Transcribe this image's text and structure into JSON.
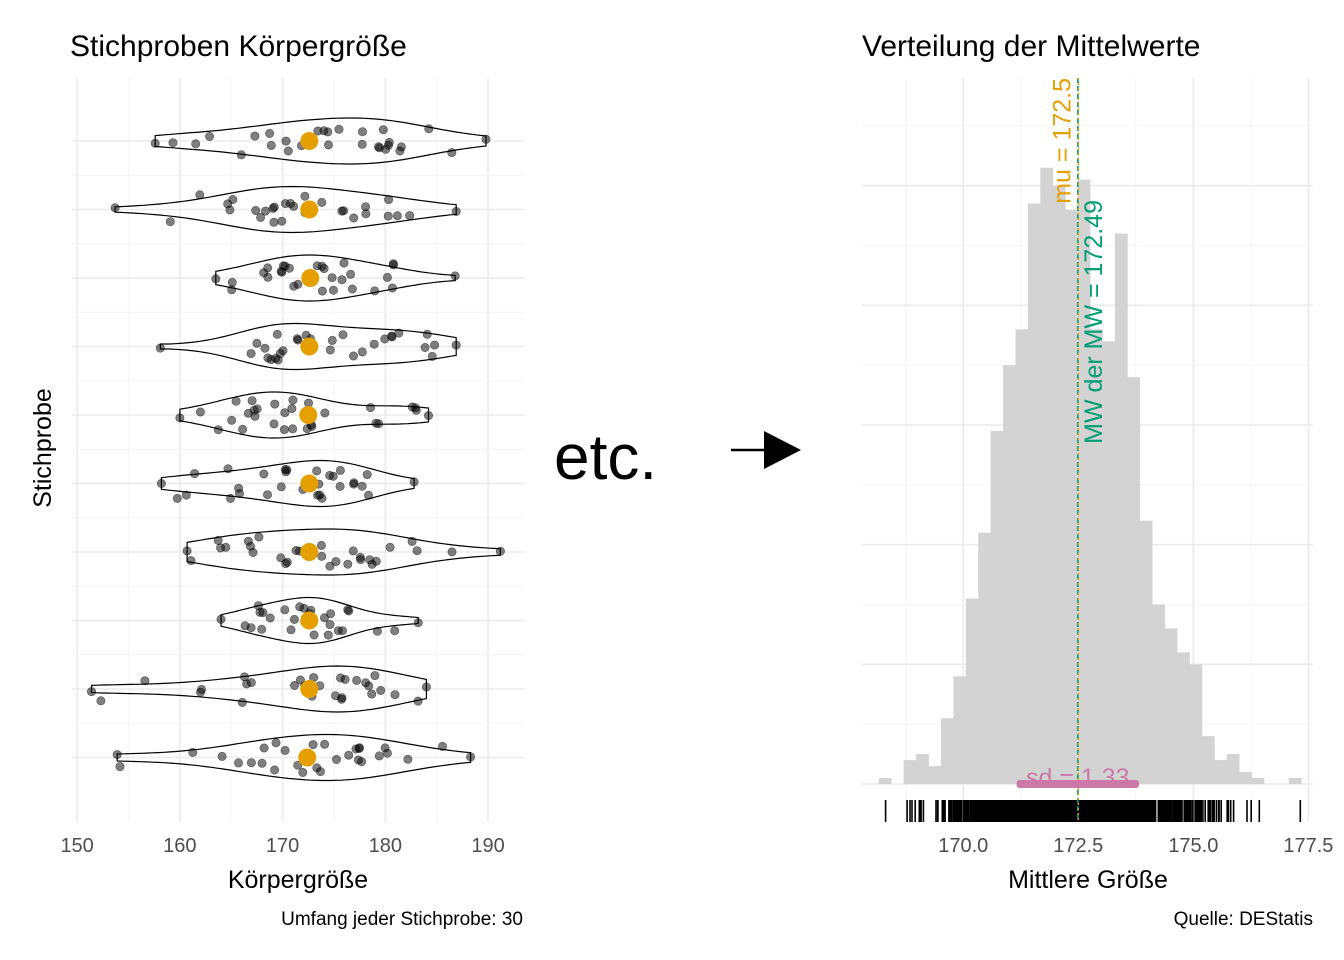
{
  "left_panel": {
    "title": "Stichproben Körpergröße",
    "xlabel": "Körpergröße",
    "ylabel": "Stichprobe",
    "caption": "Umfang jeder Stichprobe: 30",
    "xlim": [
      149.5,
      193.5
    ],
    "x_ticks": [
      150,
      160,
      170,
      180,
      190
    ],
    "x_tick_labels": [
      "150",
      "160",
      "170",
      "180",
      "190"
    ]
  },
  "right_panel": {
    "title": "Verteilung der Mittelwerte",
    "xlabel": "Mittlere Größe",
    "caption": "Quelle: DEStatis",
    "xlim": [
      167.8,
      177.6
    ],
    "x_ticks": [
      170.0,
      172.5,
      175.0,
      177.5
    ],
    "x_tick_labels": [
      "170.0",
      "172.5",
      "175.0",
      "177.5"
    ]
  },
  "middle": {
    "etc_label": "etc."
  },
  "annotations": {
    "mu_label": "mu = 172.5",
    "mw_label": "MW der MW = 172.49",
    "sd_label": "sd = 1.33"
  },
  "colors": {
    "mean_point": "#E69F00",
    "mu_line": "#E69F00",
    "mw_line": "#009E73",
    "sd_bar": "#CC79A7",
    "histogram_fill": "#d3d3d3",
    "jitter_points": "#000000"
  },
  "chart_data": [
    {
      "type": "scatter",
      "subtype": "violin with jittered points",
      "title": "Stichproben Körpergröße",
      "xlabel": "Körpergröße",
      "ylabel": "Stichprobe",
      "xlim": [
        149.5,
        193.5
      ],
      "n_per_sample": 30,
      "samples": [
        {
          "mean": 172.6,
          "min": 157.6,
          "max": 189.8,
          "peak": 174.5
        },
        {
          "mean": 172.6,
          "min": 153.7,
          "max": 186.9,
          "peak": 173.0
        },
        {
          "mean": 172.7,
          "min": 163.5,
          "max": 186.8,
          "peak": 171.2
        },
        {
          "mean": 172.6,
          "min": 158.1,
          "max": 186.9,
          "peak": 171.0
        },
        {
          "mean": 172.5,
          "min": 160.0,
          "max": 184.2,
          "peak": 173.0
        },
        {
          "mean": 172.6,
          "min": 158.2,
          "max": 182.8,
          "peak": 170.0
        },
        {
          "mean": 172.6,
          "min": 160.7,
          "max": 191.2,
          "peak": 170.0
        },
        {
          "mean": 172.6,
          "min": 164.0,
          "max": 183.2,
          "peak": 172.5
        },
        {
          "mean": 172.6,
          "min": 151.4,
          "max": 184.0,
          "peak": 172.0
        },
        {
          "mean": 172.4,
          "min": 153.9,
          "max": 188.3,
          "peak": 170.5
        }
      ]
    },
    {
      "type": "bar",
      "subtype": "histogram",
      "title": "Verteilung der Mittelwerte",
      "xlabel": "Mittlere Größe",
      "xlim": [
        167.8,
        177.6
      ],
      "bin_width": 0.27,
      "x": [
        168.3,
        168.57,
        168.84,
        169.11,
        169.38,
        169.65,
        169.92,
        170.19,
        170.46,
        170.73,
        171.0,
        171.27,
        171.54,
        171.81,
        172.08,
        172.35,
        172.62,
        172.89,
        173.16,
        173.43,
        173.7,
        173.97,
        174.24,
        174.51,
        174.78,
        175.05,
        175.32,
        175.59,
        175.86,
        176.13,
        176.4,
        176.67,
        176.94,
        177.21
      ],
      "counts": [
        1,
        0,
        4,
        5,
        3,
        11,
        18,
        31,
        42,
        59,
        70,
        76,
        97,
        103,
        100,
        96,
        101,
        76,
        74,
        92,
        68,
        44,
        30,
        26,
        22,
        20,
        8,
        4,
        5,
        2,
        1,
        0,
        0,
        1
      ],
      "mu": 172.5,
      "mean_of_means": 172.49,
      "sd": 1.33
    }
  ]
}
